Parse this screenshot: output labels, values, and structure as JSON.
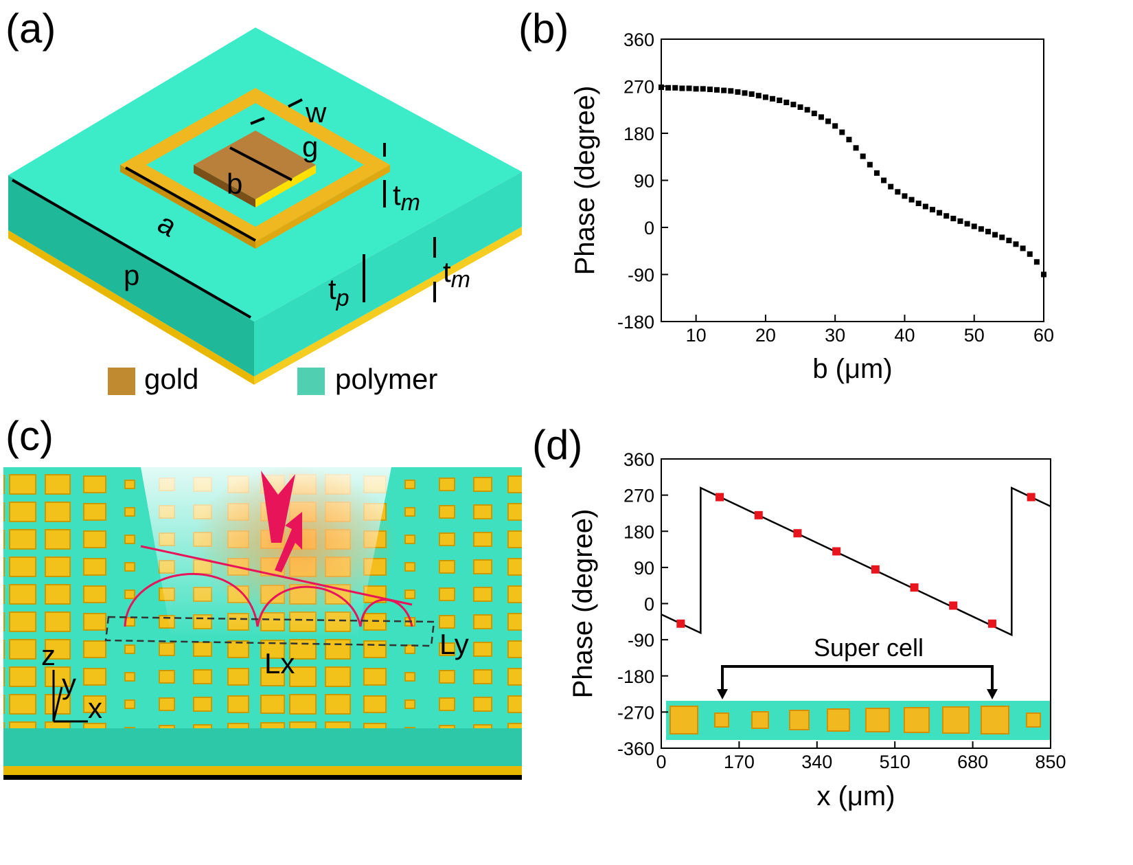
{
  "panel_labels": [
    "(a)",
    "(b)",
    "(c)",
    "(d)"
  ],
  "diagram_a": {
    "labels": [
      "w",
      "g",
      "b",
      "a",
      "p"
    ],
    "thickness": [
      {
        "base": "t",
        "sub": "m"
      },
      {
        "base": "t",
        "sub": "p"
      },
      {
        "base": "t",
        "sub": "m"
      }
    ],
    "legend": [
      "gold",
      "polymer"
    ]
  },
  "diagram_c": {
    "axes": [
      "z",
      "y",
      "x"
    ],
    "dims": [
      "Lx",
      "Ly"
    ]
  },
  "chart_data": [
    {
      "type": "scatter",
      "xlabel": "b (μm)",
      "ylabel": "Phase (degree)",
      "xlim": [
        5,
        60
      ],
      "xticks": [
        10,
        20,
        30,
        40,
        50,
        60
      ],
      "ylim": [
        -180,
        360
      ],
      "yticks": [
        -180,
        -90,
        0,
        90,
        180,
        270,
        360
      ],
      "series": [
        {
          "type": "scatter",
          "color": "#000000",
          "x": [
            5,
            6,
            7,
            8,
            9,
            10,
            11,
            12,
            13,
            14,
            15,
            16,
            17,
            18,
            19,
            20,
            21,
            22,
            23,
            24,
            25,
            26,
            27,
            28,
            29,
            30,
            31,
            32,
            33,
            34,
            35,
            36,
            37,
            38,
            39,
            40,
            41,
            42,
            43,
            44,
            45,
            46,
            47,
            48,
            49,
            50,
            51,
            52,
            53,
            54,
            55,
            56,
            57,
            58,
            59,
            60
          ],
          "values": [
            268,
            267,
            267,
            266,
            266,
            265,
            265,
            264,
            263,
            262,
            261,
            259,
            257,
            255,
            252,
            249,
            246,
            243,
            239,
            235,
            230,
            225,
            218,
            211,
            203,
            194,
            182,
            168,
            152,
            136,
            120,
            104,
            90,
            78,
            68,
            60,
            53,
            46,
            40,
            34,
            28,
            22,
            17,
            12,
            7,
            2,
            -3,
            -8,
            -14,
            -19,
            -25,
            -32,
            -40,
            -51,
            -66,
            -90
          ]
        }
      ]
    },
    {
      "type": "line",
      "xlabel": "x (μm)",
      "ylabel": "Phase (degree)",
      "annotation": "Super cell",
      "xlim": [
        0,
        850
      ],
      "xticks": [
        0,
        170,
        340,
        510,
        680,
        850
      ],
      "ylim": [
        -360,
        360
      ],
      "yticks": [
        -360,
        -270,
        -180,
        -90,
        0,
        90,
        180,
        270,
        360
      ],
      "series": [
        {
          "type": "line",
          "color": "#000000",
          "x": [
            0,
            86,
            86,
            765,
            765,
            850
          ],
          "values": [
            -27,
            -73,
            288,
            -78,
            288,
            242
          ]
        },
        {
          "type": "scatter",
          "color": "#e8141e",
          "x": [
            42.5,
            127.5,
            212.5,
            297.5,
            382.5,
            467.5,
            552.5,
            637.5,
            722.5,
            807.5
          ],
          "values": [
            -50,
            265,
            220,
            175,
            130,
            85,
            40,
            -5,
            -50,
            265
          ]
        }
      ]
    }
  ]
}
